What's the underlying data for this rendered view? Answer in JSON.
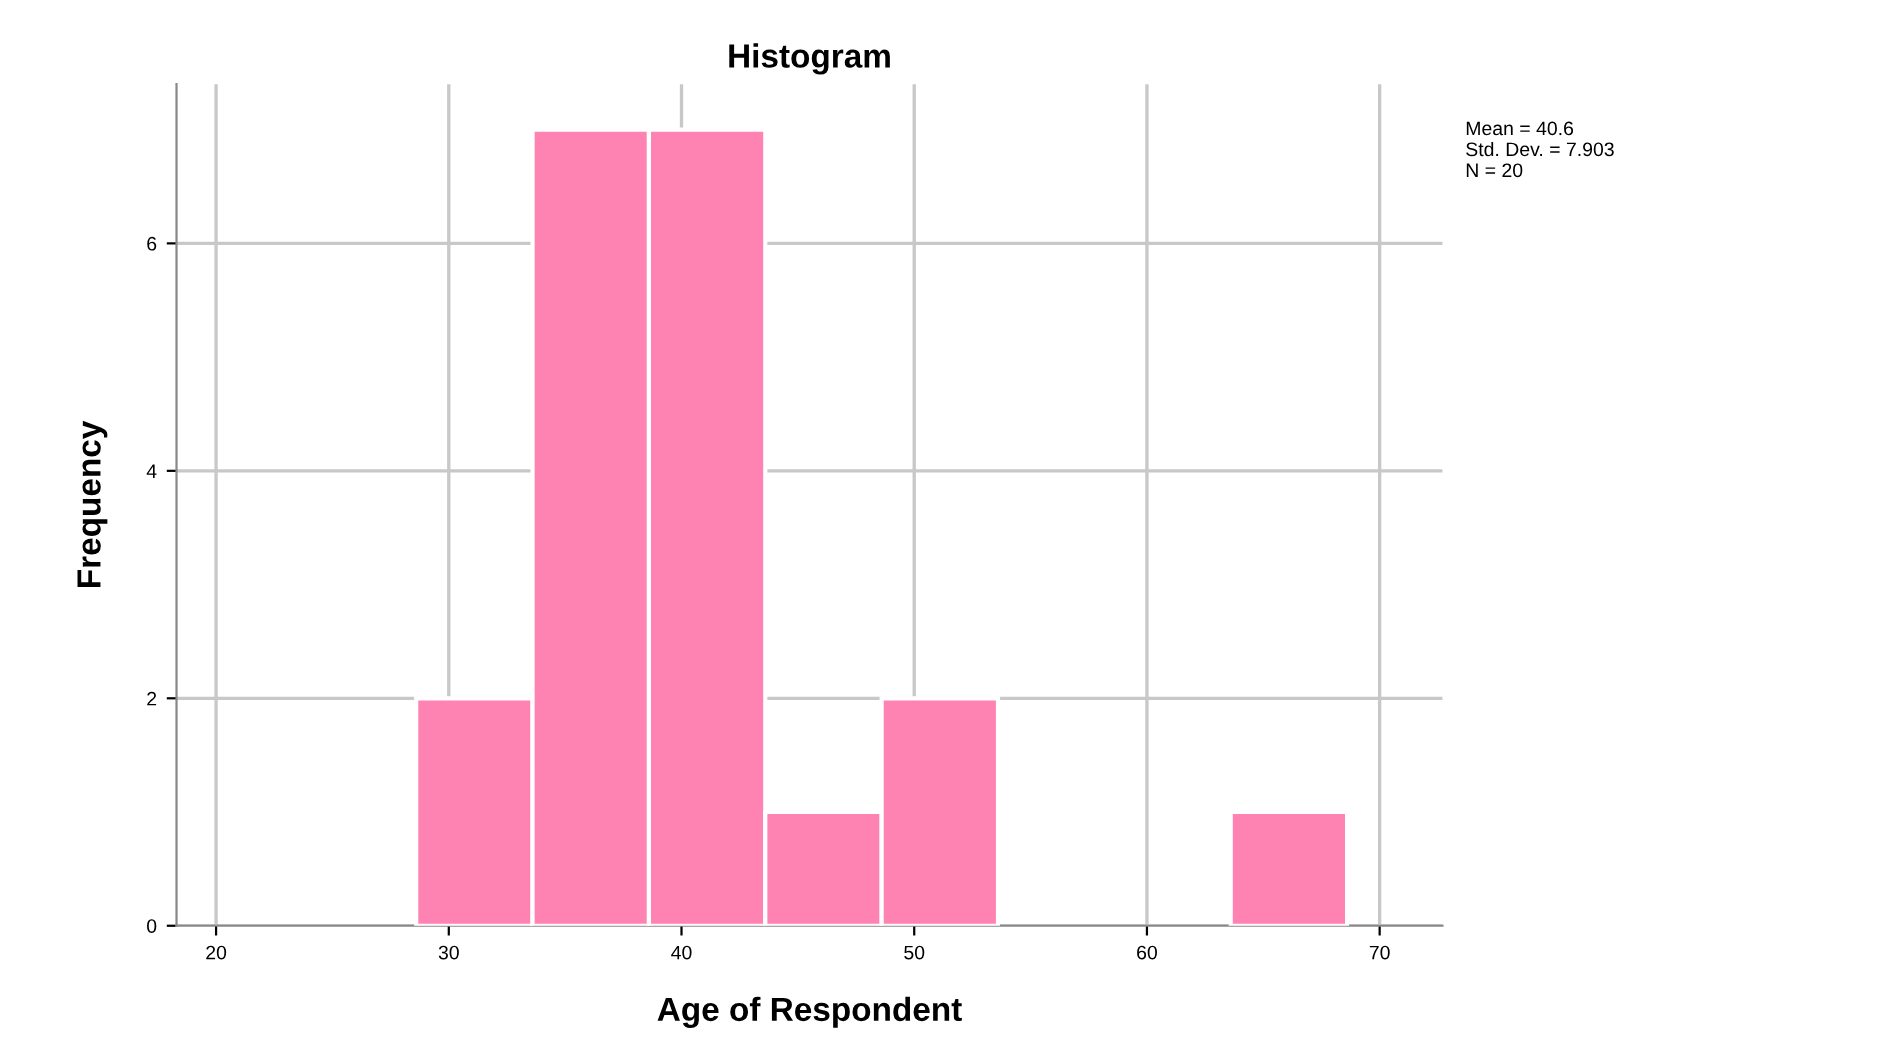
{
  "chart_data": {
    "type": "histogram",
    "title": "Histogram",
    "xlabel": "Age of Respondent",
    "ylabel": "Frequency",
    "bins": [
      28.6,
      33.6,
      38.6,
      43.6,
      48.6,
      53.6,
      58.6,
      63.6,
      68.6
    ],
    "values": [
      2,
      7,
      7,
      1,
      2,
      0,
      0,
      1
    ],
    "color": "#fe82b2",
    "xlim": [
      18.3,
      72.7
    ],
    "xticks": [
      20,
      30,
      40,
      50,
      60,
      70
    ],
    "ylim": [
      0,
      7.4
    ],
    "yticks": [
      0,
      2,
      4,
      6
    ],
    "grid": true,
    "annotations": [
      "Mean = 40.6\nStd. Dev. = 7.903\nN = 20"
    ]
  }
}
